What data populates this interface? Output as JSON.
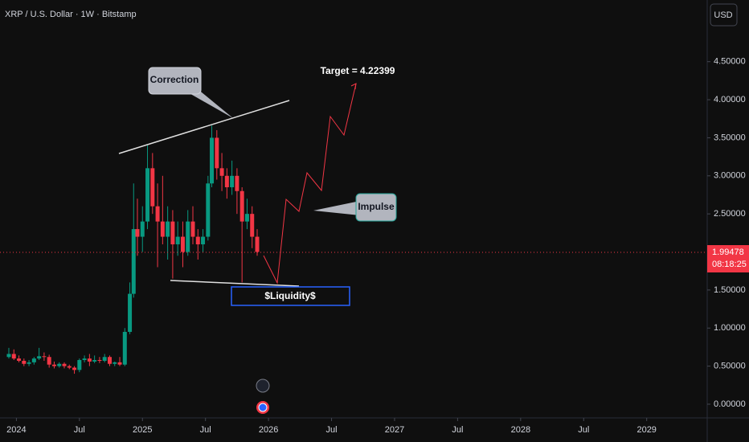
{
  "chart_data": {
    "type": "candlestick",
    "title": "XRP / U.S. Dollar · 1W · Bitstamp",
    "currency": "USD",
    "x": [
      2023.94,
      2023.98,
      2024.02,
      2024.06,
      2024.1,
      2024.14,
      2024.18,
      2024.22,
      2024.26,
      2024.3,
      2024.34,
      2024.38,
      2024.42,
      2024.46,
      2024.5,
      2024.54,
      2024.58,
      2024.62,
      2024.66,
      2024.7,
      2024.74,
      2024.78,
      2024.82,
      2024.86,
      2024.9,
      2024.93,
      2024.96,
      2025.0,
      2025.04,
      2025.08,
      2025.12,
      2025.16,
      2025.2,
      2025.24,
      2025.28,
      2025.32,
      2025.36,
      2025.4,
      2025.44,
      2025.48,
      2025.52,
      2025.55,
      2025.59,
      2025.63,
      2025.67,
      2025.71,
      2025.75,
      2025.79,
      2025.83,
      2025.87,
      2025.91
    ],
    "open": [
      0.62,
      0.66,
      0.6,
      0.57,
      0.53,
      0.55,
      0.6,
      0.63,
      0.62,
      0.52,
      0.5,
      0.53,
      0.5,
      0.48,
      0.45,
      0.58,
      0.6,
      0.56,
      0.58,
      0.57,
      0.62,
      0.53,
      0.55,
      0.52,
      0.95,
      1.45,
      2.3,
      2.2,
      2.4,
      3.1,
      2.6,
      2.4,
      2.2,
      2.4,
      2.1,
      2.2,
      2.0,
      2.4,
      2.2,
      2.1,
      2.2,
      2.9,
      3.5,
      3.1,
      3.0,
      2.85,
      3.0,
      2.8,
      2.4,
      2.5,
      2.2
    ],
    "high": [
      0.74,
      0.72,
      0.64,
      0.6,
      0.58,
      0.62,
      0.74,
      0.68,
      0.65,
      0.56,
      0.55,
      0.55,
      0.52,
      0.5,
      0.6,
      0.64,
      0.66,
      0.64,
      0.62,
      0.66,
      0.64,
      0.56,
      0.62,
      1.0,
      1.6,
      2.9,
      2.7,
      2.6,
      3.4,
      3.3,
      2.9,
      3.0,
      2.6,
      2.55,
      2.4,
      2.4,
      2.55,
      2.6,
      2.3,
      2.3,
      3.0,
      3.66,
      3.6,
      3.3,
      3.1,
      3.2,
      3.1,
      2.85,
      2.7,
      2.6,
      2.3
    ],
    "low": [
      0.6,
      0.58,
      0.55,
      0.5,
      0.5,
      0.52,
      0.58,
      0.57,
      0.48,
      0.47,
      0.48,
      0.47,
      0.46,
      0.4,
      0.42,
      0.55,
      0.5,
      0.54,
      0.54,
      0.55,
      0.5,
      0.5,
      0.5,
      0.5,
      0.92,
      1.4,
      1.95,
      2.0,
      2.3,
      2.5,
      1.8,
      2.1,
      1.9,
      1.65,
      1.95,
      1.8,
      1.95,
      2.1,
      1.9,
      2.0,
      2.15,
      2.85,
      2.95,
      2.8,
      2.7,
      2.75,
      2.5,
      1.6,
      2.3,
      2.05,
      1.95
    ],
    "close": [
      0.66,
      0.6,
      0.57,
      0.53,
      0.55,
      0.6,
      0.63,
      0.62,
      0.52,
      0.5,
      0.53,
      0.5,
      0.48,
      0.45,
      0.58,
      0.6,
      0.56,
      0.58,
      0.57,
      0.62,
      0.53,
      0.55,
      0.52,
      0.95,
      1.45,
      2.3,
      2.2,
      2.4,
      3.1,
      2.6,
      2.4,
      2.2,
      2.4,
      2.1,
      2.2,
      2.0,
      2.4,
      2.2,
      2.1,
      2.2,
      2.9,
      3.5,
      3.1,
      3.0,
      2.85,
      3.0,
      2.8,
      2.4,
      2.5,
      2.2,
      2.0
    ],
    "up_color": "#089981",
    "down_color": "#f23645",
    "xlim": [
      2023.87,
      2029.48
    ],
    "ylim": [
      -0.18,
      5.31
    ],
    "xticks": [
      {
        "value": 2024,
        "label": "2024"
      },
      {
        "value": 2024.5,
        "label": "Jul"
      },
      {
        "value": 2025,
        "label": "2025"
      },
      {
        "value": 2025.5,
        "label": "Jul"
      },
      {
        "value": 2026,
        "label": "2026"
      },
      {
        "value": 2026.5,
        "label": "Jul"
      },
      {
        "value": 2027,
        "label": "2027"
      },
      {
        "value": 2027.5,
        "label": "Jul"
      },
      {
        "value": 2028,
        "label": "2028"
      },
      {
        "value": 2028.5,
        "label": "Jul"
      },
      {
        "value": 2029,
        "label": "2029"
      }
    ],
    "yticks": [
      {
        "value": 0,
        "label": "0.00000"
      },
      {
        "value": 0.5,
        "label": "0.50000"
      },
      {
        "value": 1,
        "label": "1.00000"
      },
      {
        "value": 1.5,
        "label": "1.50000"
      },
      {
        "value": 2,
        "label": "2.00000"
      },
      {
        "value": 2.5,
        "label": "2.50000"
      },
      {
        "value": 3,
        "label": "3.00000"
      },
      {
        "value": 3.5,
        "label": "3.50000"
      },
      {
        "value": 4,
        "label": "4.00000"
      },
      {
        "value": 4.5,
        "label": "4.50000"
      }
    ],
    "last_price": 1.99478,
    "countdown": "08:18:25",
    "annotations": {
      "correction": "Correction",
      "impulse": "Impulse",
      "target": "Target = 4.22399",
      "liquidity": "$Liquidity$"
    }
  }
}
